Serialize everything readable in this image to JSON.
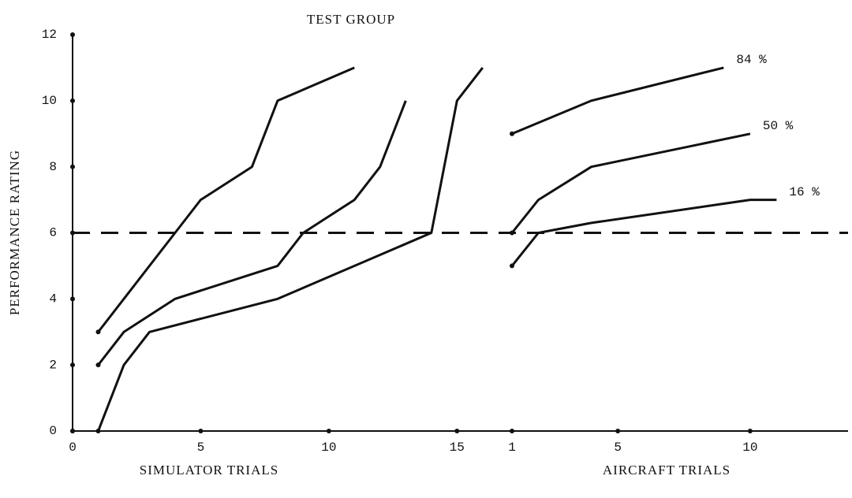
{
  "chart_data": [
    {
      "type": "line",
      "title": "TEST GROUP",
      "ylabel": "PERFORMANCE RATING",
      "xlabel": "SIMULATOR TRIALS",
      "ylim": [
        0,
        12
      ],
      "yticks": [
        0,
        2,
        4,
        6,
        8,
        10,
        12
      ],
      "reference_line": 6,
      "color": "#111",
      "xlim": [
        0,
        16.5
      ],
      "xticks": [
        0,
        5,
        10,
        15
      ],
      "series": [
        {
          "x": [
            1,
            2,
            4,
            5,
            7,
            8,
            11
          ],
          "values": [
            3,
            4,
            6,
            7,
            8,
            10,
            11
          ]
        },
        {
          "x": [
            1,
            2,
            4,
            8,
            9,
            11,
            12,
            13
          ],
          "values": [
            2,
            3,
            4,
            5,
            6,
            7,
            8,
            10
          ]
        },
        {
          "x": [
            1,
            2,
            3,
            8,
            14,
            15,
            16
          ],
          "values": [
            0,
            2,
            3,
            4,
            6,
            10,
            11
          ]
        }
      ]
    },
    {
      "type": "line",
      "xlabel": "AIRCRAFT TRIALS",
      "color": "#111",
      "xlim": [
        1,
        13.7
      ],
      "xticks": [
        1,
        5,
        10
      ],
      "series": [
        {
          "name": "84 %",
          "x": [
            1,
            4,
            9
          ],
          "values": [
            9,
            10,
            11
          ]
        },
        {
          "name": "50 %",
          "x": [
            1,
            2,
            4,
            10
          ],
          "values": [
            6,
            7,
            8,
            9
          ]
        },
        {
          "name": "16 %",
          "x": [
            1,
            2,
            4,
            10,
            11
          ],
          "values": [
            5,
            6,
            6.3,
            7,
            7
          ]
        }
      ]
    }
  ]
}
